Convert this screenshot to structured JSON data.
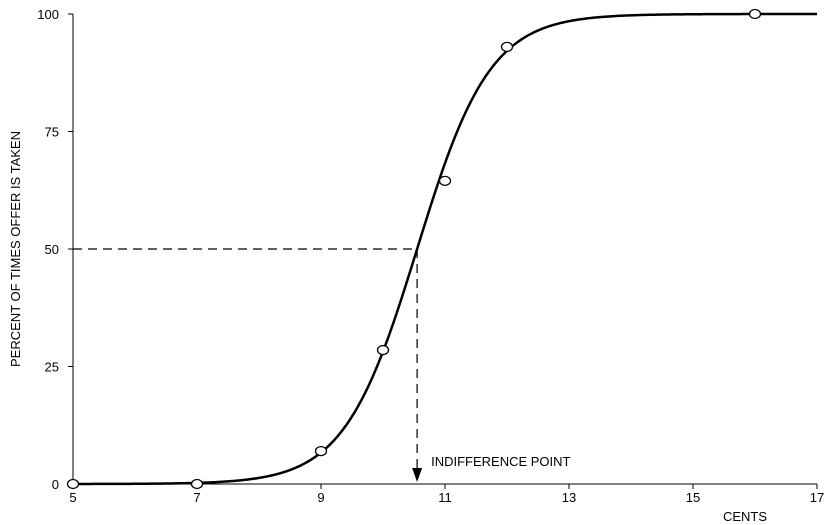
{
  "chart_data": {
    "type": "scatter",
    "title": "",
    "xlabel": "CENTS",
    "ylabel": "PERCENT OF TIMES OFFER IS TAKEN",
    "xlim": [
      5,
      17
    ],
    "ylim": [
      0,
      100
    ],
    "x_ticks": [
      5,
      7,
      9,
      11,
      13,
      15,
      17
    ],
    "y_ticks": [
      0,
      25,
      50,
      75,
      100
    ],
    "x_tick_labels": [
      "5",
      "7",
      "9",
      "11",
      "13",
      "15",
      "17"
    ],
    "y_tick_labels": [
      "0",
      "25",
      "50",
      "75",
      "100"
    ],
    "grid": false,
    "legend": "none",
    "series": [
      {
        "type": "scatter",
        "points": [
          {
            "x": 5,
            "y": 0
          },
          {
            "x": 7,
            "y": 0
          },
          {
            "x": 9,
            "y": 7
          },
          {
            "x": 10,
            "y": 28.5
          },
          {
            "x": 11,
            "y": 64.5
          },
          {
            "x": 12,
            "y": 93
          },
          {
            "x": 16,
            "y": 100
          }
        ]
      },
      {
        "type": "line",
        "curve": "logistic",
        "midpoint": 10.55,
        "slope": 1.7
      }
    ],
    "annotations": [
      {
        "text": "INDIFFERENCE POINT",
        "x": 10.55,
        "y": 50
      }
    ],
    "colors": {
      "line": "#000000",
      "marker_fill": "#ffffff",
      "dashed": "#000000"
    }
  }
}
